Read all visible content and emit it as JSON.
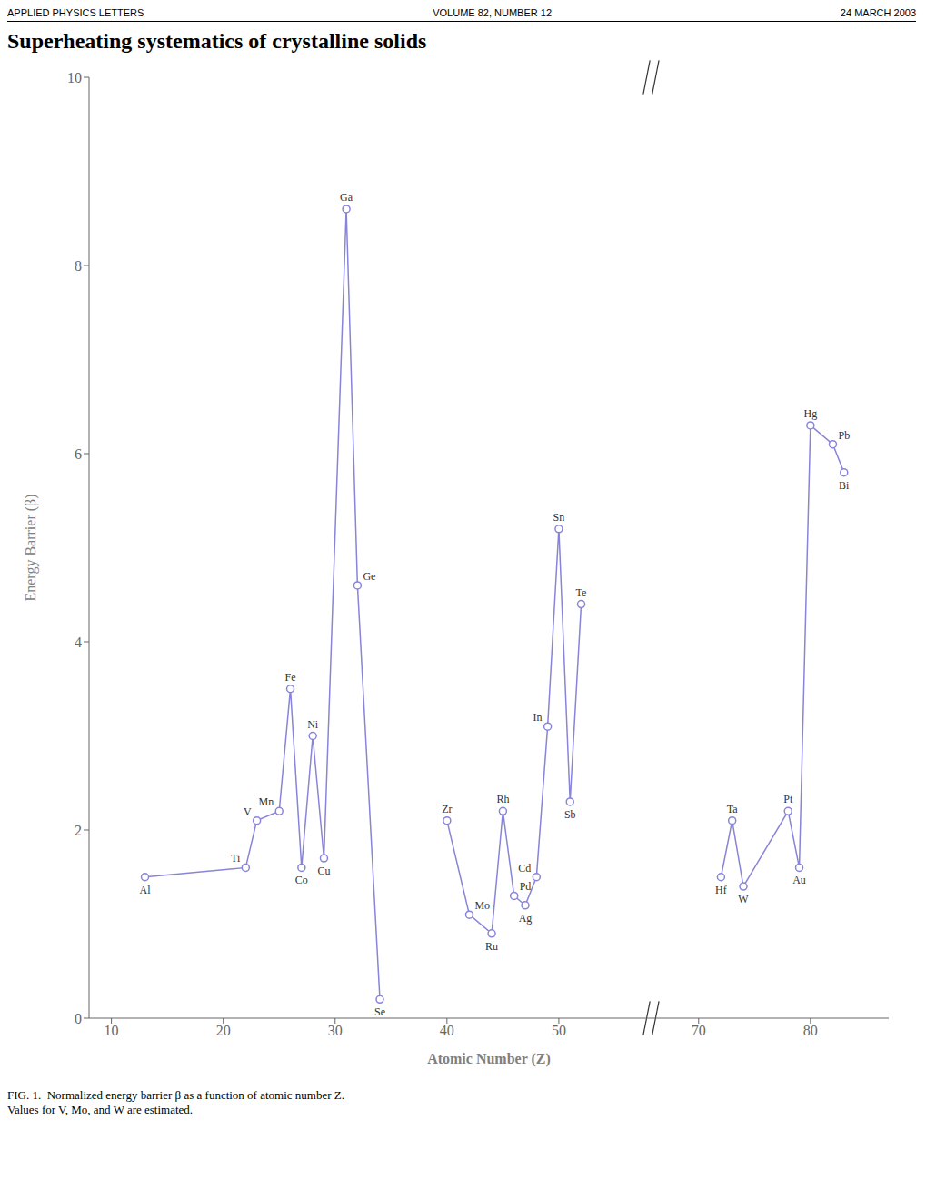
{
  "chart_data": {
    "type": "line",
    "header": [
      "APPLIED PHYSICS LETTERS",
      "VOLUME 82, NUMBER 12",
      "24 MARCH 2003"
    ],
    "title": "Superheating systematics of crystalline solids",
    "caption": [
      "FIG. 1.  Normalized energy barrier β as a function of atomic number Z.",
      "Values for V, Mo, and W are estimated."
    ],
    "xlabel": "Atomic Number (Z)",
    "ylabel": "Energy Barrier (β)",
    "series": [
      {
        "x": [
          13,
          22,
          23,
          25,
          26,
          27,
          28,
          29,
          31,
          32,
          34
        ],
        "values": [
          1.5,
          1.6,
          2.1,
          2.2,
          3.5,
          1.6,
          3.0,
          1.7,
          8.6,
          4.6,
          0.2
        ],
        "labels": [
          "Al",
          "Ti",
          "V",
          "Mn",
          "Fe",
          "Co",
          "Ni",
          "Cu",
          "Ga",
          "Ge",
          "Se"
        ],
        "marker": "circle",
        "line_style": "solid"
      },
      {
        "x": [
          40,
          42,
          44,
          45,
          46,
          47,
          48,
          49,
          50,
          51,
          52
        ],
        "values": [
          2.1,
          1.1,
          0.9,
          2.2,
          1.3,
          1.2,
          1.5,
          3.1,
          5.2,
          2.3,
          4.4
        ],
        "labels": [
          "Zr",
          "Mo",
          "Ru",
          "Rh",
          "Pd",
          "Ag",
          "Cd",
          "In",
          "Sn",
          "Sb",
          "Te"
        ],
        "marker": "circle",
        "line_style": "solid"
      },
      {
        "x": [
          72,
          73,
          74,
          78,
          79,
          80,
          82,
          83
        ],
        "values": [
          1.5,
          2.1,
          1.4,
          2.2,
          1.6,
          6.3,
          6.1,
          5.8
        ],
        "labels": [
          "Hf",
          "Ta",
          "W",
          "Pt",
          "Au",
          "Hg",
          "Pb",
          "Bi"
        ],
        "marker": "circle",
        "line_style": "solid"
      }
    ],
    "xlim": [
      8,
      87
    ],
    "xticks": [
      10,
      20,
      30,
      40,
      50,
      70,
      80
    ],
    "x_break": [
      57,
      67
    ],
    "ylim": [
      0,
      10
    ],
    "yticks": [
      0,
      2,
      4,
      6,
      8,
      10
    ],
    "grid": false
  }
}
